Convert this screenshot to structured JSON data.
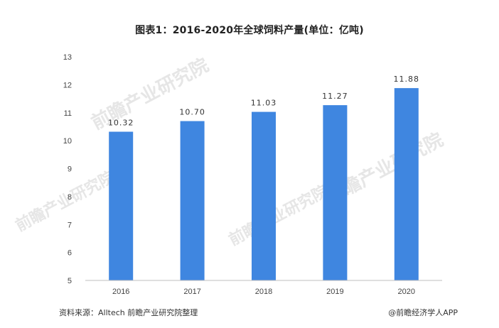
{
  "title": "图表1：2016-2020年全球饲料产量(单位：亿吨)",
  "footer": {
    "source": "资料来源：Alltech 前瞻产业研究院整理",
    "brand": "@前瞻经济学人APP"
  },
  "watermark": "前瞻产业研究院",
  "colors": {
    "bar": "#3f86e0",
    "axis": "#bfbfbf",
    "text": "#333333"
  },
  "chart_data": {
    "type": "bar",
    "title": "图表1：2016-2020年全球饲料产量(单位：亿吨)",
    "categories": [
      "2016",
      "2017",
      "2018",
      "2019",
      "2020"
    ],
    "values": [
      10.32,
      10.7,
      11.03,
      11.27,
      11.88
    ],
    "data_labels": [
      "10.32",
      "10.70",
      "11.03",
      "11.27",
      "11.88"
    ],
    "yticks": [
      5,
      6,
      7,
      8,
      9,
      10,
      11,
      12,
      13
    ],
    "ylim": [
      5,
      13
    ],
    "xlabel": "",
    "ylabel": "",
    "grid": false,
    "legend": "none"
  }
}
